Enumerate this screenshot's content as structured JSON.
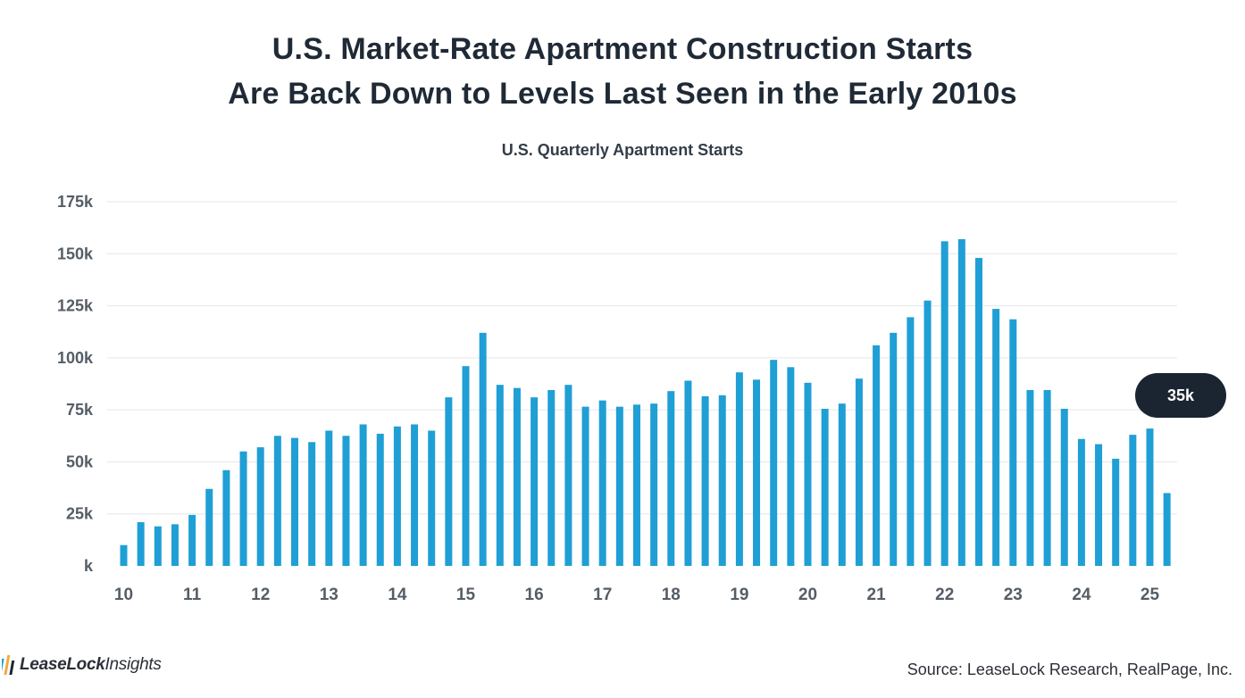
{
  "title_lines": [
    "U.S. Market-Rate Apartment Construction Starts",
    "Are Back Down to Levels Last Seen in the Early 2010s"
  ],
  "source": "Source: LeaseLock Research, RealPage, Inc.",
  "logo": {
    "brand": "LeaseLock",
    "suffix": "Insights"
  },
  "colors": {
    "bar": "#1f9fd5",
    "callout": "#1b2531",
    "grid": "#e3e6ea",
    "text": "#1f2a36"
  },
  "chart_data": {
    "type": "bar",
    "title": "U.S. Quarterly Apartment Starts",
    "xlabel": "",
    "ylabel": "",
    "ylim": [
      0,
      175000
    ],
    "yticks": [
      0,
      25000,
      50000,
      75000,
      100000,
      125000,
      150000,
      175000
    ],
    "ytick_labels": [
      "k",
      "25k",
      "50k",
      "75k",
      "100k",
      "125k",
      "150k",
      "175k"
    ],
    "xtick_labels": [
      "10",
      "11",
      "12",
      "13",
      "14",
      "15",
      "16",
      "17",
      "18",
      "19",
      "20",
      "21",
      "22",
      "23",
      "24",
      "25"
    ],
    "grid": "horizontal",
    "categories": [
      "2010 Q1",
      "2010 Q2",
      "2010 Q3",
      "2010 Q4",
      "2011 Q1",
      "2011 Q2",
      "2011 Q3",
      "2011 Q4",
      "2012 Q1",
      "2012 Q2",
      "2012 Q3",
      "2012 Q4",
      "2013 Q1",
      "2013 Q2",
      "2013 Q3",
      "2013 Q4",
      "2014 Q1",
      "2014 Q2",
      "2014 Q3",
      "2014 Q4",
      "2015 Q1",
      "2015 Q2",
      "2015 Q3",
      "2015 Q4",
      "2016 Q1",
      "2016 Q2",
      "2016 Q3",
      "2016 Q4",
      "2017 Q1",
      "2017 Q2",
      "2017 Q3",
      "2017 Q4",
      "2018 Q1",
      "2018 Q2",
      "2018 Q3",
      "2018 Q4",
      "2019 Q1",
      "2019 Q2",
      "2019 Q3",
      "2019 Q4",
      "2020 Q1",
      "2020 Q2",
      "2020 Q3",
      "2020 Q4",
      "2021 Q1",
      "2021 Q2",
      "2021 Q3",
      "2021 Q4",
      "2022 Q1",
      "2022 Q2",
      "2022 Q3",
      "2022 Q4",
      "2023 Q1",
      "2023 Q2",
      "2023 Q3",
      "2023 Q4",
      "2024 Q1",
      "2024 Q2",
      "2024 Q3",
      "2024 Q4",
      "2025 Q1",
      "2025 Q2"
    ],
    "values": [
      10000,
      21000,
      19000,
      20000,
      24500,
      37000,
      46000,
      55000,
      57000,
      62500,
      61500,
      59500,
      65000,
      62500,
      68000,
      63500,
      67000,
      68000,
      65000,
      81000,
      96000,
      112000,
      87000,
      85500,
      81000,
      84500,
      87000,
      76500,
      79500,
      76500,
      77500,
      78000,
      84000,
      89000,
      81500,
      82000,
      93000,
      89500,
      99000,
      95500,
      88000,
      75500,
      78000,
      90000,
      106000,
      112000,
      119500,
      127500,
      156000,
      157000,
      148000,
      123500,
      118500,
      84500,
      84500,
      75500,
      61000,
      58500,
      51500,
      63000,
      66000,
      35000
    ],
    "annotations": [
      {
        "text": "35k",
        "target": "2025 Q2"
      }
    ]
  }
}
